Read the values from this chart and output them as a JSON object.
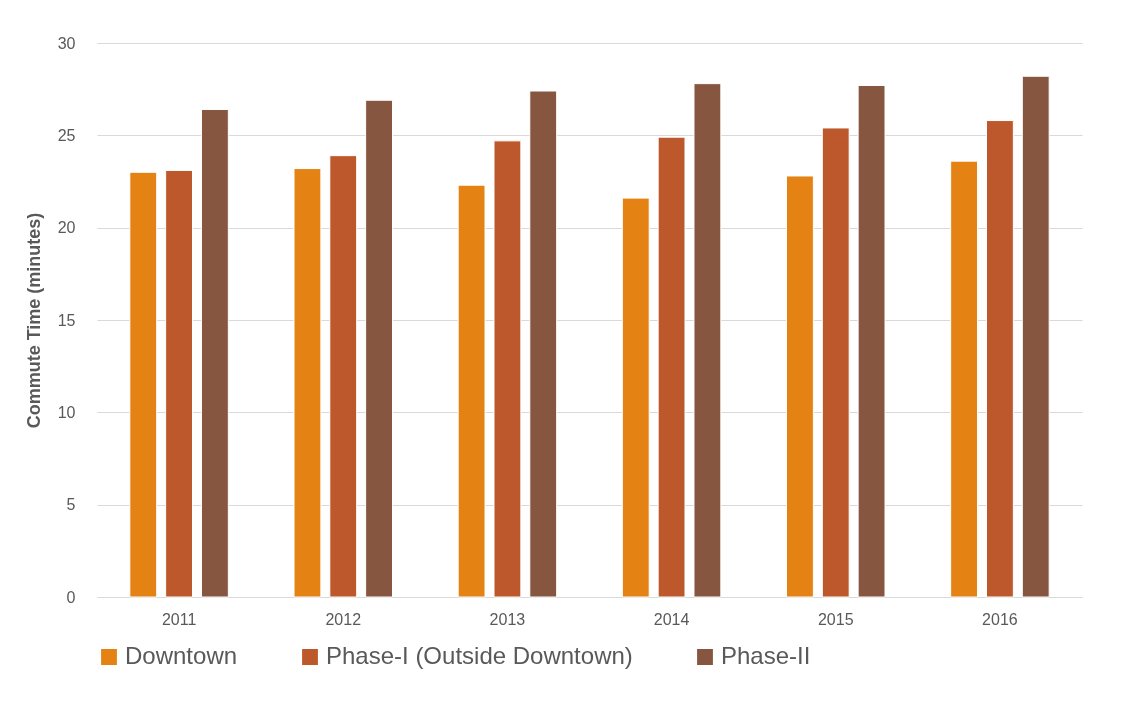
{
  "chart_data": {
    "type": "bar",
    "ylabel": "Commute Time (minutes)",
    "categories": [
      "2011",
      "2012",
      "2013",
      "2014",
      "2015",
      "2016"
    ],
    "series": [
      {
        "name": "Downtown",
        "color": "#e48213",
        "values": [
          23.0,
          23.2,
          22.3,
          21.6,
          22.8,
          23.6
        ]
      },
      {
        "name": "Phase-I (Outside Downtown)",
        "color": "#bd582c",
        "values": [
          23.1,
          23.9,
          24.7,
          24.9,
          25.4,
          25.8
        ]
      },
      {
        "name": "Phase-II",
        "color": "#865640",
        "values": [
          26.4,
          26.9,
          27.4,
          27.8,
          27.7,
          28.2
        ]
      }
    ],
    "ylim": [
      0,
      30
    ],
    "yticks": [
      0,
      5,
      10,
      15,
      20,
      25,
      30
    ],
    "grid": "y",
    "legend": "bottom"
  }
}
